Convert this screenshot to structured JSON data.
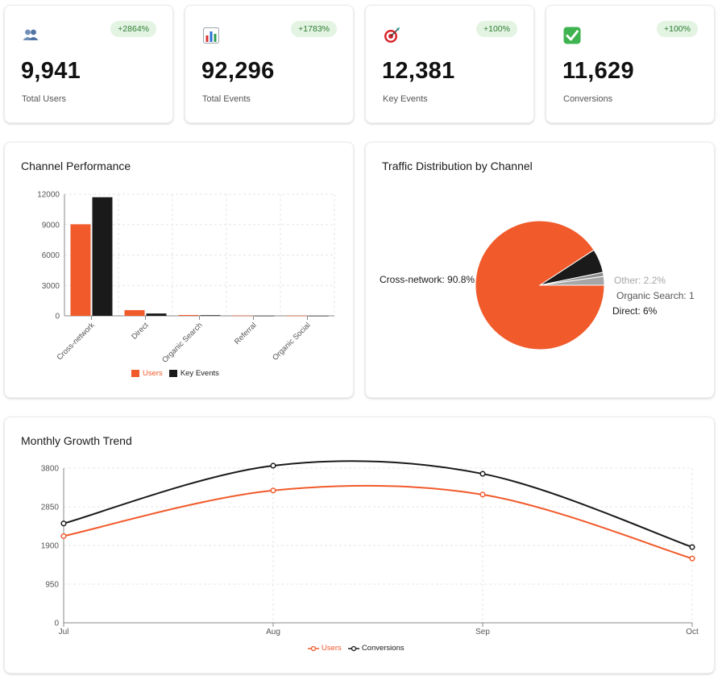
{
  "kpis": [
    {
      "icon": "users-icon",
      "value": "9,941",
      "label": "Total Users",
      "change": "+2864%"
    },
    {
      "icon": "bar-chart-icon",
      "value": "92,296",
      "label": "Total Events",
      "change": "+1783%"
    },
    {
      "icon": "target-icon",
      "value": "12,381",
      "label": "Key Events",
      "change": "+100%"
    },
    {
      "icon": "check-icon",
      "value": "11,629",
      "label": "Conversions",
      "change": "+100%"
    }
  ],
  "channel_performance": {
    "title": "Channel Performance",
    "legend": {
      "users": "Users",
      "key_events": "Key Events"
    }
  },
  "traffic_distribution": {
    "title": "Traffic Distribution by Channel"
  },
  "monthly_growth": {
    "title": "Monthly Growth Trend",
    "legend": {
      "users": "Users",
      "conversions": "Conversions"
    }
  },
  "colors": {
    "accent": "#F15A2B",
    "dark": "#1a1a1a",
    "grey": "#a6a6a6",
    "badge_bg": "#e3f4e3",
    "badge_text": "#2e7d32"
  },
  "chart_data": [
    {
      "type": "bar",
      "categories": [
        "Cross-network",
        "Direct",
        "Organic Search",
        "Referral",
        "Organic Social"
      ],
      "series": [
        {
          "name": "Users",
          "values": [
            9030,
            560,
            80,
            30,
            10
          ]
        },
        {
          "name": "Key Events",
          "values": [
            11700,
            230,
            60,
            10,
            5
          ]
        }
      ],
      "ylim": [
        0,
        12000
      ],
      "yticks": [
        "0",
        "3000",
        "6000",
        "9000",
        "12000"
      ],
      "grid": true,
      "legend": "bottom"
    },
    {
      "type": "pie",
      "slices": [
        {
          "label": "Cross-network: 90.8%",
          "value": 90.8,
          "color": "#F15A2B"
        },
        {
          "label": "Direct: 6%",
          "value": 6.0,
          "color": "#1a1a1a"
        },
        {
          "label": "Organic Search: 1",
          "value": 1.0,
          "color": "#8c8c8c"
        },
        {
          "label": "Other: 2.2%",
          "value": 2.2,
          "color": "#a6a6a6"
        }
      ]
    },
    {
      "type": "line",
      "x": [
        "Jul",
        "Aug",
        "Sep",
        "Oct"
      ],
      "series": [
        {
          "name": "Users",
          "values": [
            2130,
            3250,
            3150,
            1580
          ]
        },
        {
          "name": "Conversions",
          "values": [
            2440,
            3860,
            3660,
            1860
          ]
        }
      ],
      "ylim": [
        0,
        3800
      ],
      "yticks": [
        "0",
        "950",
        "1900",
        "2850",
        "3800"
      ],
      "grid": true,
      "legend": "bottom"
    }
  ]
}
